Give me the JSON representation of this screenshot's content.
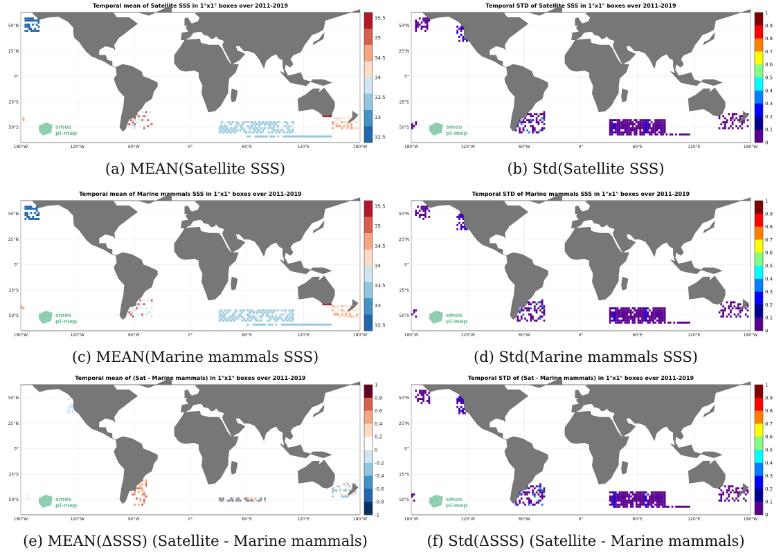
{
  "panels": [
    {
      "title": "Temporal mean of Satellite SSS in 1°x1° boxes over 2011-2019",
      "caption": "(a) MEAN(Satellite SSS)",
      "colorbar": "mean",
      "ticks": [
        "35.5",
        "35",
        "34.5",
        "34",
        "33.5",
        "33",
        "32.5"
      ],
      "pattern": "sss"
    },
    {
      "title": "Temporal STD of Satellite SSS in 1°x1° boxes over 2011-2019",
      "caption": "(b) Std(Satellite SSS)",
      "colorbar": "jet",
      "ticks": [
        "1",
        "0.9",
        "0.8",
        "0.7",
        "0.6",
        "0.5",
        "0.4",
        "0.3",
        "0.2",
        "0.1",
        "0"
      ],
      "pattern": "std"
    },
    {
      "title": "Temporal mean of Marine mammals SSS in 1°x1° boxes over 2011-2019",
      "caption": "(c) MEAN(Marine mammals SSS)",
      "colorbar": "mean",
      "ticks": [
        "35.5",
        "35",
        "34.5",
        "34",
        "33.5",
        "33",
        "32.5"
      ],
      "pattern": "sss"
    },
    {
      "title": "Temporal STD of Marine mammals SSS in 1°x1° boxes over 2011-2019",
      "caption": "(d) Std(Marine mammals SSS)",
      "colorbar": "jet",
      "ticks": [
        "1",
        "0.9",
        "0.8",
        "0.7",
        "0.6",
        "0.5",
        "0.4",
        "0.3",
        "0.2",
        "0.1",
        "0"
      ],
      "pattern": "std"
    },
    {
      "title": "Temporal mean of (Sat - Marine mammals) in 1°x1° boxes over 2011-2019",
      "caption": "(e) MEAN(ΔSSS) (Satellite - Marine mammals)",
      "colorbar": "diverging",
      "ticks": [
        "1",
        "0.8",
        "0.6",
        "0.4",
        "0.2",
        "0",
        "-0.2",
        "-0.4",
        "-0.6",
        "-0.8",
        "-1"
      ],
      "pattern": "diff"
    },
    {
      "title": "Temporal STD of (Sat - Marine mammals) in 1°x1° boxes over 2011-2019",
      "caption": "(f) Std(ΔSSS) (Satellite - Marine mammals)",
      "colorbar": "jet",
      "ticks": [
        "1",
        "0.9",
        "0.8",
        "0.7",
        "0.6",
        "0.5",
        "0.4",
        "0.3",
        "0.2",
        "0.1",
        "0"
      ],
      "pattern": "std"
    }
  ],
  "map": {
    "lon_ticks": [
      "180°W",
      "120°W",
      "60°W",
      "0°",
      "60°E",
      "120°E",
      "180°W"
    ],
    "lat_ticks": [
      "50°N",
      "25°N",
      "0°",
      "25°S",
      "50°S"
    ],
    "logo_line1": "smos",
    "logo_line2": "pi-mep"
  },
  "colors": {
    "land": "#777777",
    "mean_scale": [
      "#b2182b",
      "#d6604d",
      "#f4a582",
      "#fddbc7",
      "#d1e5f0",
      "#92c5de",
      "#4393c3",
      "#2166ac"
    ],
    "jet_scale": [
      "#800000",
      "#ff0000",
      "#ff8000",
      "#ffff00",
      "#80ff80",
      "#00ffff",
      "#0080ff",
      "#0000ff",
      "#00008f",
      "#5a0090"
    ],
    "diverging_scale": [
      "#67001f",
      "#d6604d",
      "#f4a582",
      "#fddbc7",
      "#ffffff",
      "#d1e5f0",
      "#92c5de",
      "#4393c3",
      "#2166ac",
      "#053061"
    ],
    "logo": "#6abf94"
  }
}
